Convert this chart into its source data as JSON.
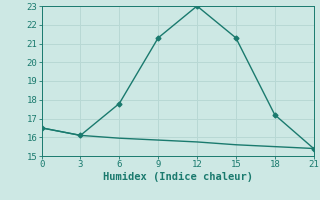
{
  "line1_x": [
    0,
    3,
    6,
    9,
    12,
    15,
    18,
    21
  ],
  "line1_y": [
    16.5,
    16.1,
    17.8,
    21.3,
    23.0,
    21.3,
    17.2,
    15.4
  ],
  "line2_x": [
    0,
    3,
    6,
    9,
    12,
    15,
    18,
    21
  ],
  "line2_y": [
    16.5,
    16.1,
    15.95,
    15.85,
    15.75,
    15.6,
    15.5,
    15.4
  ],
  "line_color": "#1a7a6e",
  "bg_color": "#cde8e4",
  "grid_major_color": "#b8d8d4",
  "grid_minor_color": "#d4ecea",
  "xlabel": "Humidex (Indice chaleur)",
  "xlim": [
    0,
    21
  ],
  "ylim": [
    15,
    23
  ],
  "xticks": [
    0,
    3,
    6,
    9,
    12,
    15,
    18,
    21
  ],
  "yticks": [
    15,
    16,
    17,
    18,
    19,
    20,
    21,
    22,
    23
  ],
  "xlabel_fontsize": 7.5,
  "tick_fontsize": 6.5,
  "marker": "D",
  "marker_size": 2.5,
  "linewidth": 1.0
}
